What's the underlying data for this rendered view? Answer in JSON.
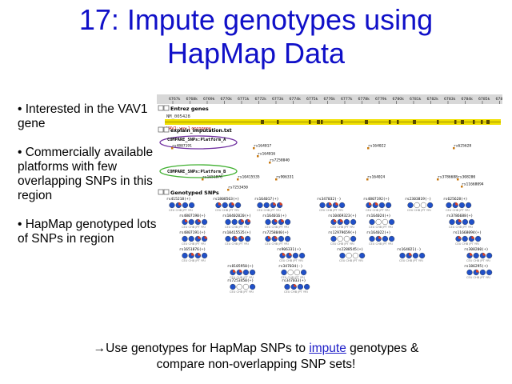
{
  "title": {
    "line1": "17: Impute genotypes using",
    "line2": "HapMap Data"
  },
  "bullets": [
    "• Interested in the VAV1 gene",
    "• Commercially available platforms with few overlapping SNPs in this region",
    "• HapMap genotyped lots of SNPs in region"
  ],
  "footer": {
    "prefix": "→Use genotypes for HapMap SNPs to ",
    "link": "impute",
    "suffix": " genotypes &",
    "line2": "compare non-overlapping SNP sets!"
  },
  "browser": {
    "ruler": [
      "6767k",
      "6768k",
      "6769k",
      "6770k",
      "6771k",
      "6772k",
      "6773k",
      "6774k",
      "6775k",
      "6776k",
      "6777k",
      "6778k",
      "6779k",
      "6780k",
      "6781k",
      "6782k",
      "6783k",
      "6784k",
      "6785k",
      "6786k"
    ],
    "tracks": {
      "entrez": "Entrez genes",
      "gene_id": "NM_005428",
      "gene_label": "VAV1: vav 1 oncogene",
      "explain": "explain_imputation.txt",
      "platform_a": "COMPARE_SNPs:Platform_A",
      "platform_b": "COMPARE_SNPs:Platform_B",
      "genotyped": "Genotyped SNPs"
    },
    "platform_a_snps": [
      "rs4807191",
      "rs164017",
      "rs164016",
      "rs7258040",
      "rs164022",
      "rs625628"
    ],
    "platform_b_snps": [
      "rs1651876",
      "rs10415535",
      "rs7253450",
      "rs906331",
      "rs164024",
      "rs3786688",
      "rs308200",
      "rs11668094"
    ],
    "genotyped_snps": [
      [
        "rs415218(+)",
        "rs1808563(+)",
        "rs164017(+)",
        "rs347032(-)",
        "rs4807192(+)",
        "rs2303819(-)",
        "rs625628(+)"
      ],
      [
        "rs4807190(+)",
        "rs10402020(+)",
        "rs164016(+)",
        "rs10469323(+)",
        "rs164024(+)",
        "rs3786688(+)"
      ],
      [
        "rs4807191(+)",
        "rs10415535(+)",
        "rs7258040(+)",
        "rs12979659(+)",
        "rs164022(+)",
        "rs11668094(+)"
      ],
      [
        "rs1651876(+)",
        "rs906331(+)",
        "rs2288545(+)",
        "rs164021(-)",
        "rs308200(+)"
      ],
      [
        "rs8105950(+)",
        "rs347034(-)",
        "rs186295(+)"
      ],
      [
        "rs7253450(+)",
        "rs347033(+)"
      ]
    ],
    "pop_labels": "CEU CHB JPT YRI",
    "colors": {
      "gene_bar": "#f0e000",
      "platform_a_circle": "#7030a0",
      "platform_b_circle": "#40b030",
      "allele_blue": "#2050c8",
      "allele_red": "#e04020",
      "allele_white": "#ffffff",
      "snp_marker": "#c87810"
    }
  }
}
